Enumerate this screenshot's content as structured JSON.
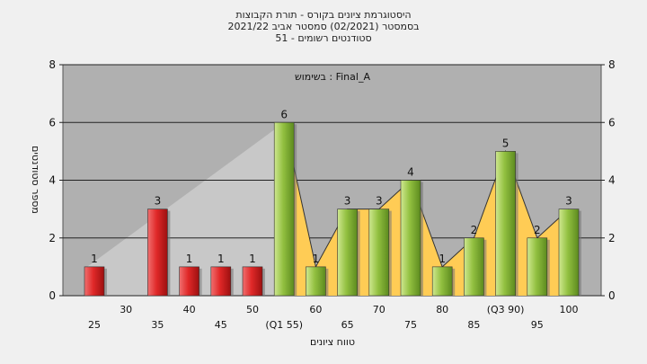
{
  "header": {
    "title_line1": "היסטוגרמת ציונים בקורס - תורת הקבוצות",
    "title_line2": "בסמסטר  (02/2021)  סמסטר אביב 2021/22",
    "title_line3": "סטודנטים רשומים - 51"
  },
  "chart_data": {
    "type": "bar",
    "title": "היסטוגרמת ציונים בקורס - תורת הקבוצות",
    "subtitle": "בסמסטר  (02/2021)  סמסטר אביב 2021/22 | סטודנטים רשומים - 51",
    "annotation": "בשימוש : Final_A",
    "xlabel": "טווח ציונים",
    "ylabel": "מספר סטודנטים",
    "ylim": [
      0,
      8
    ],
    "yticks": [
      0,
      2,
      4,
      6,
      8
    ],
    "grid": true,
    "categories": [
      "25",
      "30",
      "35",
      "40",
      "45",
      "50",
      "55",
      "60",
      "65",
      "70",
      "75",
      "80",
      "85",
      "90",
      "95",
      "100"
    ],
    "tick_labels": [
      "25",
      "30",
      "35",
      "40",
      "45",
      "50",
      "(Q1 55)",
      "60",
      "65",
      "70",
      "75",
      "80",
      "85",
      "(Q3 90)",
      "95",
      "100"
    ],
    "values": [
      1,
      0,
      3,
      1,
      1,
      1,
      6,
      1,
      3,
      3,
      4,
      1,
      2,
      5,
      2,
      3
    ],
    "value_labels": [
      "1",
      "",
      "3",
      "1",
      "1",
      "1",
      "6",
      "1",
      "3",
      "3",
      "4",
      "1",
      "2",
      "5",
      "2",
      "3"
    ],
    "bar_colors": [
      "#dd2222",
      "",
      "#dd2222",
      "#dd2222",
      "#dd2222",
      "#dd2222",
      "#88bb33",
      "#88bb33",
      "#88bb33",
      "#88bb33",
      "#88bb33",
      "#88bb33",
      "#88bb33",
      "#88bb33",
      "#88bb33",
      "#88bb33"
    ],
    "area_fill": "#ffcc55",
    "plot_background": "#b0b0b0"
  }
}
